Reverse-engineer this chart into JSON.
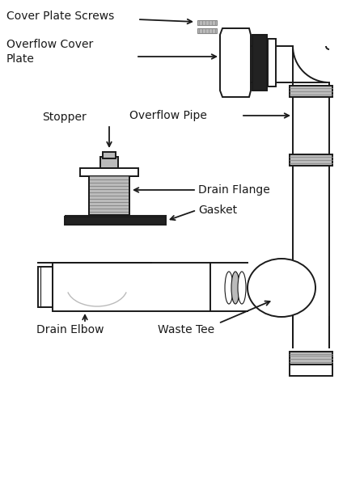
{
  "bg_color": "#ffffff",
  "line_color": "#1a1a1a",
  "gray_fill": "#c8c8c8",
  "dark_fill": "#222222",
  "mid_gray": "#888888",
  "light_gray": "#bbbbbb",
  "labels": {
    "cover_plate_screws": "Cover Plate Screws",
    "overflow_cover_plate": "Overflow Cover\nPlate",
    "stopper": "Stopper",
    "overflow_pipe": "Overflow Pipe",
    "drain_flange": "Drain Flange",
    "gasket": "Gasket",
    "drain_elbow": "Drain Elbow",
    "waste_tee": "Waste Tee"
  },
  "font_size": 10
}
